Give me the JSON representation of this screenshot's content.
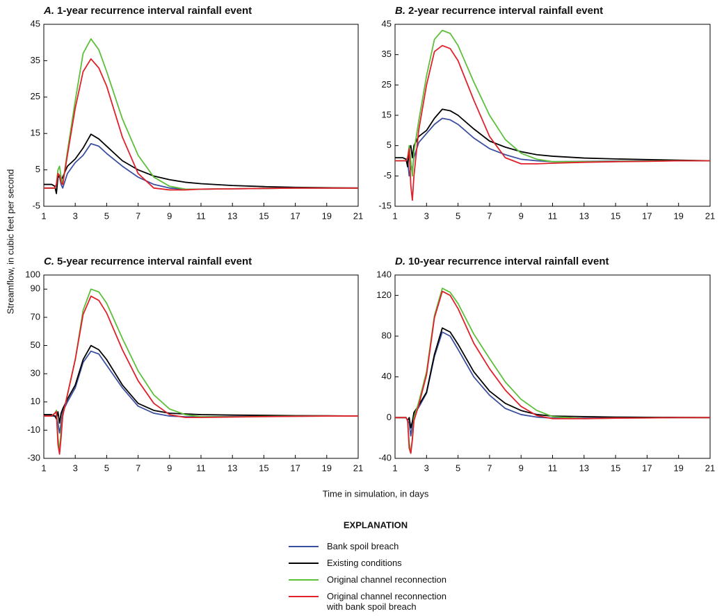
{
  "y_label": "Streamflow, in cubic feet per second",
  "x_label": "Time in simulation, in days",
  "legend": {
    "title": "EXPLANATION",
    "entries": [
      {
        "name": "Bank spoil breach",
        "color": "#3b4fa0"
      },
      {
        "name": "Existing conditions",
        "color": "#000000"
      },
      {
        "name": "Original channel reconnection",
        "color": "#5cbf3a"
      },
      {
        "name": "Original channel reconnection with bank spoil breach",
        "color": "#e0202a"
      }
    ]
  },
  "chart_data": [
    {
      "type": "line",
      "panel_label": "A.",
      "title": "1-year recurrence interval rainfall event",
      "x": [
        1,
        1.5,
        1.7,
        1.8,
        1.9,
        2,
        2.1,
        2.2,
        2.5,
        3,
        3.5,
        4,
        4.5,
        5,
        6,
        7,
        8,
        9,
        10,
        11,
        13,
        15,
        17,
        19,
        21
      ],
      "xlim": [
        1,
        21
      ],
      "xticks": [
        1,
        3,
        5,
        7,
        9,
        11,
        13,
        15,
        17,
        19,
        21
      ],
      "ylim": [
        -5,
        45
      ],
      "yticks": [
        -5,
        5,
        15,
        25,
        35,
        45
      ],
      "series": [
        {
          "values": [
            0,
            0,
            0,
            1,
            3,
            3,
            1,
            0,
            4,
            7,
            9,
            12.2,
            11.5,
            9.5,
            6,
            3,
            1,
            0,
            -0.3,
            -0.3,
            -0.2,
            -0.1,
            0,
            0,
            0
          ]
        },
        {
          "values": [
            1,
            1,
            0.5,
            -1.5,
            3,
            3.5,
            2,
            3,
            6,
            8,
            11,
            14.8,
            13.5,
            11.5,
            7.5,
            5,
            3.3,
            2.3,
            1.6,
            1.2,
            0.7,
            0.4,
            0.2,
            0.1,
            0
          ]
        },
        {
          "values": [
            0,
            0,
            0,
            1,
            5,
            6,
            3,
            1,
            10,
            24,
            37,
            41,
            38,
            32,
            19,
            9,
            3,
            0.5,
            -0.3,
            -0.3,
            -0.2,
            -0.1,
            0,
            0,
            0
          ]
        },
        {
          "values": [
            0,
            0,
            0,
            1,
            4,
            3.5,
            1.5,
            1,
            9,
            22,
            32,
            35.5,
            33,
            28,
            14,
            4,
            0,
            -0.5,
            -0.5,
            -0.3,
            -0.2,
            -0.1,
            0,
            0,
            0
          ]
        }
      ]
    },
    {
      "type": "line",
      "panel_label": "B.",
      "title": "2-year recurrence interval rainfall event",
      "x": [
        1,
        1.5,
        1.7,
        1.8,
        1.9,
        2,
        2.1,
        2.2,
        2.5,
        3,
        3.5,
        4,
        4.5,
        5,
        6,
        7,
        8,
        9,
        10,
        11,
        13,
        15,
        17,
        19,
        21
      ],
      "xlim": [
        1,
        21
      ],
      "xticks": [
        1,
        3,
        5,
        7,
        9,
        11,
        13,
        15,
        17,
        19,
        21
      ],
      "ylim": [
        -15,
        45
      ],
      "yticks": [
        -15,
        -5,
        5,
        15,
        25,
        35,
        45
      ],
      "series": [
        {
          "values": [
            0,
            0,
            0,
            0,
            -5,
            -2,
            -3,
            1,
            6,
            9,
            12,
            14,
            13.5,
            12,
            7.5,
            4,
            2,
            0.5,
            0,
            -0.3,
            -0.2,
            -0.1,
            0,
            0,
            0
          ]
        },
        {
          "values": [
            1,
            1,
            0.5,
            -2,
            4,
            5,
            1,
            5,
            8,
            10,
            14,
            17,
            16.5,
            15,
            10.5,
            6.5,
            4.5,
            3,
            2,
            1.5,
            0.9,
            0.6,
            0.4,
            0.2,
            0
          ]
        },
        {
          "values": [
            0,
            0,
            0,
            1,
            5,
            0,
            -5,
            3,
            13,
            28,
            40,
            43,
            42,
            38,
            26,
            15,
            7,
            2.5,
            0.5,
            -0.3,
            -0.3,
            -0.2,
            -0.1,
            0,
            0
          ]
        },
        {
          "values": [
            0,
            0,
            0,
            1,
            4,
            -8,
            -13,
            -5,
            10,
            25,
            36,
            38,
            37,
            33,
            20,
            8,
            1,
            -1,
            -1,
            -0.8,
            -0.5,
            -0.3,
            -0.2,
            0,
            0
          ]
        }
      ]
    },
    {
      "type": "line",
      "panel_label": "C.",
      "title": "5-year recurrence interval rainfall event",
      "x": [
        1,
        1.5,
        1.7,
        1.8,
        1.9,
        2,
        2.1,
        2.2,
        2.5,
        3,
        3.5,
        4,
        4.5,
        5,
        6,
        7,
        8,
        9,
        10,
        11,
        13,
        15,
        17,
        19,
        21
      ],
      "xlim": [
        1,
        21
      ],
      "xticks": [
        1,
        3,
        5,
        7,
        9,
        11,
        13,
        15,
        17,
        19,
        21
      ],
      "ylim": [
        -30,
        100
      ],
      "yticks": [
        -30,
        -10,
        10,
        30,
        50,
        70,
        90,
        100
      ],
      "series": [
        {
          "values": [
            0,
            0,
            0,
            0,
            -5,
            -12,
            -5,
            3,
            10,
            20,
            38,
            46,
            44,
            36,
            20,
            7,
            2,
            0,
            -0.5,
            -0.5,
            -0.3,
            -0.1,
            0,
            0,
            0
          ]
        },
        {
          "values": [
            1,
            1,
            0,
            -2,
            3,
            -5,
            2,
            5,
            12,
            22,
            40,
            50,
            47,
            40,
            22,
            9,
            4,
            2,
            1.5,
            1,
            0.7,
            0.5,
            0.3,
            0.2,
            0
          ]
        },
        {
          "values": [
            0,
            0,
            2,
            4,
            -15,
            -25,
            -10,
            0,
            15,
            40,
            75,
            90,
            88,
            80,
            55,
            32,
            15,
            5,
            1,
            -0.5,
            -0.5,
            -0.3,
            -0.1,
            0,
            0
          ]
        },
        {
          "values": [
            0,
            0,
            2,
            3,
            -20,
            -27,
            -15,
            0,
            15,
            40,
            72,
            85,
            82,
            73,
            47,
            25,
            9,
            1,
            -1,
            -1,
            -0.7,
            -0.4,
            -0.2,
            0,
            0
          ]
        }
      ]
    },
    {
      "type": "line",
      "panel_label": "D.",
      "title": "10-year recurrence interval rainfall event",
      "x": [
        1,
        1.5,
        1.7,
        1.8,
        1.9,
        2,
        2.1,
        2.2,
        2.5,
        3,
        3.5,
        4,
        4.5,
        5,
        6,
        7,
        8,
        9,
        10,
        11,
        13,
        15,
        17,
        19,
        21
      ],
      "xlim": [
        1,
        21
      ],
      "xticks": [
        1,
        3,
        5,
        7,
        9,
        11,
        13,
        15,
        17,
        19,
        21
      ],
      "ylim": [
        -40,
        140
      ],
      "yticks": [
        -40,
        0,
        40,
        80,
        120,
        140
      ],
      "series": [
        {
          "values": [
            0,
            0,
            0,
            -3,
            -5,
            -18,
            -8,
            3,
            10,
            24,
            60,
            84,
            80,
            67,
            40,
            22,
            9,
            3,
            0.5,
            -0.5,
            -0.5,
            -0.3,
            -0.1,
            0,
            0
          ]
        },
        {
          "values": [
            0,
            0,
            0,
            -3,
            0,
            -10,
            -4,
            5,
            12,
            25,
            62,
            88,
            84,
            72,
            45,
            26,
            14,
            7,
            3,
            1.5,
            1,
            0.5,
            0.3,
            0.2,
            0
          ]
        },
        {
          "values": [
            0,
            0,
            0,
            -3,
            -25,
            -35,
            -20,
            0,
            15,
            45,
            100,
            127,
            123,
            112,
            82,
            58,
            35,
            18,
            7,
            1,
            -1,
            -0.5,
            -0.3,
            0,
            0
          ]
        },
        {
          "values": [
            0,
            0,
            0,
            -3,
            -30,
            -35,
            -22,
            -3,
            12,
            42,
            98,
            124,
            120,
            107,
            73,
            48,
            27,
            11,
            2,
            -1,
            -1,
            -0.5,
            -0.3,
            0,
            0
          ]
        }
      ]
    }
  ]
}
